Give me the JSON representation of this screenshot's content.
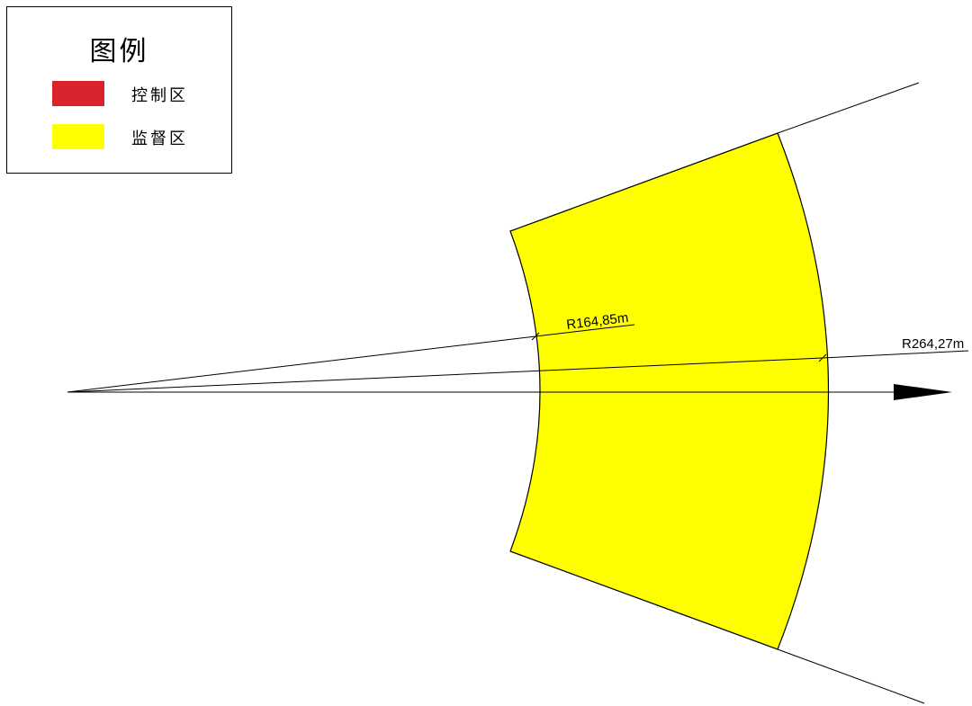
{
  "legend": {
    "title": "图例",
    "items": [
      {
        "label": "控制区",
        "color": "#d7232b"
      },
      {
        "label": "监督区",
        "color": "#ffff00"
      }
    ]
  },
  "zone": {
    "fill": "#ffff00",
    "stroke": "#000000"
  },
  "dimensions": {
    "inner_radius": "R164,85m",
    "outer_radius": "R264,27m"
  }
}
